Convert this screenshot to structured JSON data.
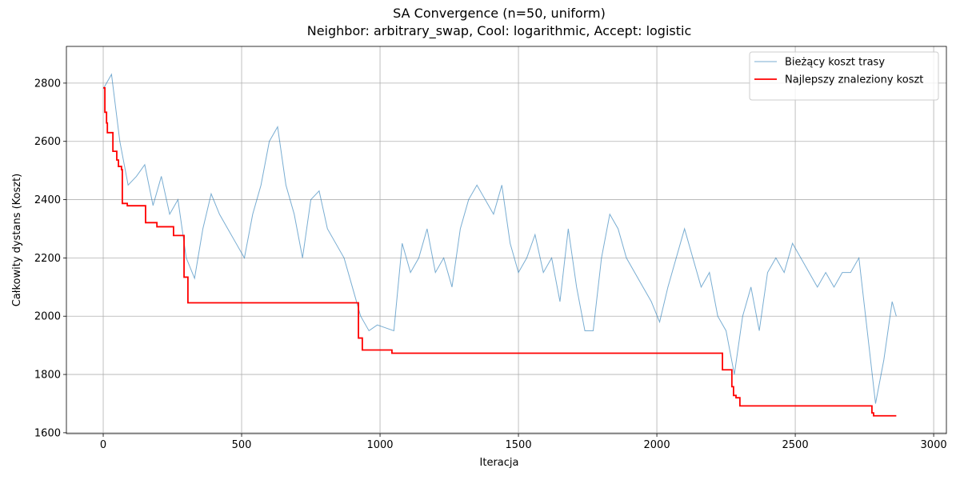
{
  "chart_data": {
    "type": "line",
    "title": "SA Convergence (n=50, uniform)",
    "subtitle": "Neighbor: arbitrary_swap, Cool: logarithmic, Accept: logistic",
    "x_label": "Iteracja",
    "y_label": "Całkowity dystans (Koszt)",
    "xlim": [
      -133,
      3046
    ],
    "ylim": [
      1597,
      2926
    ],
    "xticks": [
      0,
      500,
      1000,
      1500,
      2000,
      2500,
      3000
    ],
    "yticks": [
      1600,
      1800,
      2000,
      2200,
      2400,
      2600,
      2800
    ],
    "grid": true,
    "legend": "upper right",
    "series": [
      {
        "name": "Bieżący koszt trasy",
        "color": "#1f77b4",
        "step": false,
        "x": [
          0,
          30,
          60,
          90,
          120,
          150,
          180,
          210,
          240,
          270,
          300,
          330,
          360,
          390,
          420,
          450,
          480,
          510,
          540,
          570,
          600,
          630,
          660,
          690,
          720,
          750,
          780,
          810,
          840,
          870,
          900,
          930,
          960,
          990,
          1020,
          1050,
          1080,
          1110,
          1140,
          1170,
          1200,
          1230,
          1260,
          1290,
          1320,
          1350,
          1380,
          1410,
          1440,
          1470,
          1500,
          1530,
          1560,
          1590,
          1620,
          1650,
          1680,
          1710,
          1740,
          1770,
          1800,
          1830,
          1860,
          1890,
          1920,
          1950,
          1980,
          2010,
          2040,
          2070,
          2100,
          2130,
          2160,
          2190,
          2220,
          2250,
          2280,
          2310,
          2340,
          2370,
          2400,
          2430,
          2460,
          2490,
          2520,
          2550,
          2580,
          2610,
          2640,
          2670,
          2700,
          2730,
          2760,
          2790,
          2820,
          2850,
          2865
        ],
        "values": [
          2780,
          2830,
          2600,
          2450,
          2480,
          2520,
          2380,
          2480,
          2350,
          2400,
          2200,
          2130,
          2300,
          2420,
          2350,
          2300,
          2250,
          2200,
          2350,
          2450,
          2600,
          2650,
          2450,
          2350,
          2200,
          2400,
          2430,
          2300,
          2250,
          2200,
          2100,
          2000,
          1950,
          1970,
          1960,
          1950,
          2250,
          2150,
          2200,
          2300,
          2150,
          2200,
          2100,
          2300,
          2400,
          2450,
          2400,
          2350,
          2450,
          2250,
          2150,
          2200,
          2280,
          2150,
          2200,
          2050,
          2300,
          2100,
          1950,
          1950,
          2200,
          2350,
          2300,
          2200,
          2150,
          2100,
          2050,
          1980,
          2100,
          2200,
          2300,
          2200,
          2100,
          2150,
          2000,
          1950,
          1800,
          2000,
          2100,
          1950,
          2150,
          2200,
          2150,
          2250,
          2200,
          2150,
          2100,
          2150,
          2100,
          2150,
          2150,
          2200,
          1950,
          1700,
          1850,
          2050,
          2000
        ]
      },
      {
        "name": "Najlepszy znaleziony koszt",
        "color": "red",
        "step": true,
        "x": [
          0,
          6,
          12,
          15,
          35,
          49,
          55,
          66,
          69,
          87,
          153,
          194,
          254,
          292,
          306,
          922,
          936,
          1043,
          2237,
          2271,
          2277,
          2286,
          2300,
          2777,
          2783,
          2865
        ],
        "values": [
          2784,
          2700,
          2663,
          2630,
          2566,
          2536,
          2514,
          2503,
          2387,
          2379,
          2321,
          2307,
          2277,
          2134,
          2046,
          1925,
          1884,
          1873,
          1816,
          1758,
          1728,
          1720,
          1692,
          1668,
          1658,
          1658
        ]
      }
    ]
  }
}
